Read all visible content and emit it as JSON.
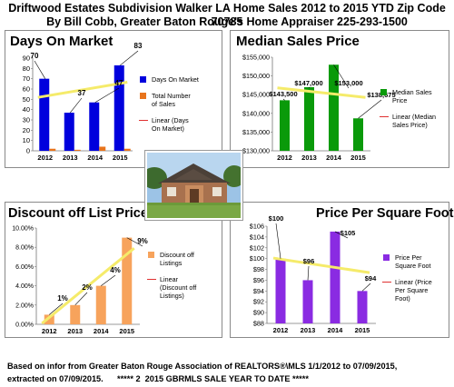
{
  "header": {
    "line1": "Driftwood Estates Subdivision Walker LA Home Sales 2012 to 2015 YTD Zip Code 70785",
    "line2": "By Bill Cobb, Greater Baton Rouge's Home Appraiser 225-293-1500"
  },
  "footer": {
    "line1": "Based on infor from Greater Baton Rouge Association of REALTORS®\\MLS 1/1/2012 to 07/09/2015,",
    "line2": "extracted on 07/09/2015.      ***** 2  2015 GBRMLS SALE YEAR TO DATE *****"
  },
  "colors": {
    "dom": "#0000dd",
    "sales": "#e8741c",
    "trend": "#f5eb6a",
    "median": "#0a9a0a",
    "discount": "#f7a35c",
    "ppsf": "#8a2be2",
    "legend_trend": "#e03030"
  },
  "chart_data": [
    {
      "id": "dom",
      "type": "bar",
      "title": "Days On Market",
      "categories": [
        "2012",
        "2013",
        "2014",
        "2015"
      ],
      "series": [
        {
          "name": "Days On Market",
          "values": [
            70,
            37,
            47,
            83
          ]
        },
        {
          "name": "Total Number of Sales",
          "values": [
            2,
            1,
            4,
            2
          ]
        }
      ],
      "trend_legend": "Linear (Days On Market)",
      "data_labels": [
        "70",
        "37",
        "47",
        "83"
      ],
      "ylim": [
        0,
        90
      ],
      "yticks": [
        "0",
        "10",
        "20",
        "30",
        "40",
        "50",
        "60",
        "70",
        "80",
        "90"
      ],
      "legend": "right",
      "grid": false
    },
    {
      "id": "median",
      "type": "bar",
      "title": "Median Sales Price",
      "categories": [
        "2012",
        "2013",
        "2014",
        "2015"
      ],
      "series": [
        {
          "name": "Median Sales Price",
          "values": [
            143500,
            147000,
            153000,
            138675
          ]
        }
      ],
      "trend_legend": "Linear (Median Sales Price)",
      "data_labels": [
        "$143,500",
        "$147,000",
        "$153,000",
        "$138,675"
      ],
      "ylim": [
        130000,
        155000
      ],
      "yticks": [
        "$130,000",
        "$135,000",
        "$140,000",
        "$145,000",
        "$150,000",
        "$155,000"
      ],
      "legend": "right",
      "grid": false
    },
    {
      "id": "discount",
      "type": "bar",
      "title": "Discount off List Price",
      "categories": [
        "2012",
        "2013",
        "2014",
        "2015"
      ],
      "series": [
        {
          "name": "Discount off Listings",
          "values": [
            1,
            2,
            4,
            9
          ]
        }
      ],
      "trend_legend": "Linear (Discount off Listings)",
      "data_labels": [
        "1%",
        "2%",
        "4%",
        "9%"
      ],
      "ylim": [
        0,
        10
      ],
      "yticks": [
        "0.00%",
        "2.00%",
        "4.00%",
        "6.00%",
        "8.00%",
        "10.00%"
      ],
      "legend": "right",
      "grid": false
    },
    {
      "id": "ppsf",
      "type": "bar",
      "title": "Price Per Square Foot",
      "categories": [
        "2012",
        "2013",
        "2014",
        "2015"
      ],
      "series": [
        {
          "name": "Price Per Square Foot",
          "values": [
            100,
            96,
            105,
            94
          ]
        }
      ],
      "trend_legend": "Linear (Price Per Square Foot)",
      "data_labels": [
        "$100",
        "$96",
        "$105",
        "$94"
      ],
      "ylim": [
        88,
        106
      ],
      "yticks": [
        "$88",
        "$90",
        "$92",
        "$94",
        "$96",
        "$98",
        "$100",
        "$102",
        "$104",
        "$106"
      ],
      "legend": "right",
      "grid": false
    }
  ]
}
